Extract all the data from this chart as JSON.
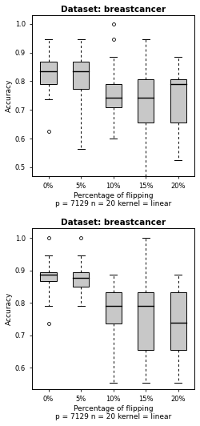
{
  "title": "Dataset: breastcancer",
  "xlabel": "Percentage of flipping",
  "xlabel2": "p = 7129 n = 20 kernel = linear",
  "ylabel": "Accuracy",
  "categories": [
    "0%",
    "5%",
    "10%",
    "15%",
    "20%"
  ],
  "plot1": {
    "boxes": [
      {
        "q1": 0.79,
        "median": 0.836,
        "q3": 0.868,
        "whisker_low": 0.737,
        "whisker_high": 0.947,
        "outliers": [
          0.625
        ]
      },
      {
        "q1": 0.772,
        "median": 0.836,
        "q3": 0.868,
        "whisker_low": 0.565,
        "whisker_high": 0.947,
        "outliers": []
      },
      {
        "q1": 0.71,
        "median": 0.743,
        "q3": 0.79,
        "whisker_low": 0.6,
        "whisker_high": 0.886,
        "outliers": [
          0.947,
          1.0
        ]
      },
      {
        "q1": 0.655,
        "median": 0.743,
        "q3": 0.807,
        "whisker_low": 0.456,
        "whisker_high": 0.947,
        "outliers": []
      },
      {
        "q1": 0.655,
        "median": 0.79,
        "q3": 0.807,
        "whisker_low": 0.525,
        "whisker_high": 0.886,
        "outliers": []
      }
    ],
    "ylim": [
      0.47,
      1.03
    ],
    "yticks": [
      0.5,
      0.6,
      0.7,
      0.8,
      0.9,
      1.0
    ]
  },
  "plot2": {
    "boxes": [
      {
        "q1": 0.868,
        "median": 0.886,
        "q3": 0.895,
        "whisker_low": 0.79,
        "whisker_high": 0.947,
        "outliers": [
          0.736,
          1.0
        ]
      },
      {
        "q1": 0.851,
        "median": 0.877,
        "q3": 0.895,
        "whisker_low": 0.79,
        "whisker_high": 0.947,
        "outliers": [
          1.0
        ]
      },
      {
        "q1": 0.736,
        "median": 0.79,
        "q3": 0.833,
        "whisker_low": 0.553,
        "whisker_high": 0.886,
        "outliers": []
      },
      {
        "q1": 0.655,
        "median": 0.79,
        "q3": 0.833,
        "whisker_low": 0.553,
        "whisker_high": 1.0,
        "outliers": []
      },
      {
        "q1": 0.655,
        "median": 0.74,
        "q3": 0.833,
        "whisker_low": 0.553,
        "whisker_high": 0.886,
        "outliers": []
      }
    ],
    "ylim": [
      0.535,
      1.03
    ],
    "yticks": [
      0.6,
      0.7,
      0.8,
      0.9,
      1.0
    ]
  },
  "box_color": "#c8c8c8",
  "box_edge_color": "#000000",
  "median_color": "#000000",
  "whisker_color": "#000000",
  "outlier_color": "#000000",
  "background_color": "#ffffff",
  "plot_bg_color": "#ffffff",
  "title_fontsize": 7.5,
  "label_fontsize": 6.5,
  "tick_fontsize": 6.0,
  "box_width": 0.5
}
